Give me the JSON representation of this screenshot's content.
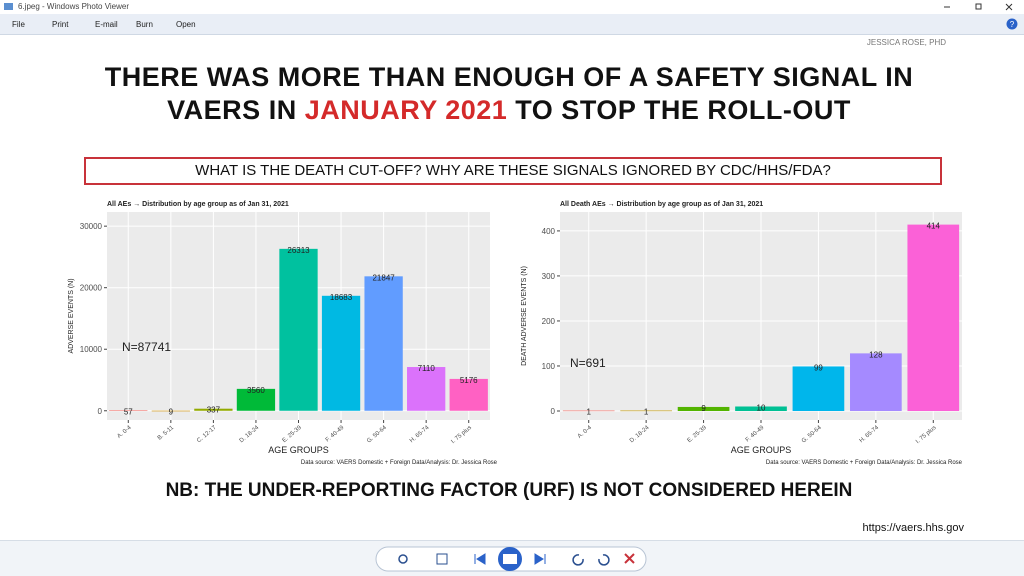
{
  "window": {
    "title": "6.jpeg - Windows Photo Viewer",
    "menu": [
      "File",
      "Print",
      "E-mail",
      "Burn",
      "Open"
    ]
  },
  "slide": {
    "author": "JESSICA ROSE, PHD",
    "headline_line1": "THERE WAS MORE THAN ENOUGH OF A SAFETY SIGNAL IN",
    "headline_line2_start": "VAERS IN ",
    "headline_line2_highlight": "JANUARY 2021",
    "headline_line2_end": " TO STOP THE ROLL-OUT",
    "question": "WHAT IS THE DEATH CUT-OFF? WHY ARE THESE SIGNALS IGNORED BY CDC/HHS/FDA?",
    "footnote": "NB: THE UNDER-REPORTING FACTOR (URF) IS NOT CONSIDERED HEREIN",
    "url": "https://vaers.hhs.gov"
  },
  "chart_data": [
    {
      "type": "bar",
      "title": "All AEs → Distribution by age group as of Jan 31, 2021",
      "y_label": "ADVERSE EVENTS (N)",
      "x_label": "AGE GROUPS",
      "annotation": "N=87741",
      "source": "Data source: VAERS Domestic + Foreign Data/Analysis: Dr. Jessica Rose",
      "categories": [
        "A. 0-4",
        "B. 5-11",
        "C. 12-17",
        "D. 18-24",
        "E. 25-39",
        "F. 40-49",
        "G. 50-64",
        "H. 65-74",
        "I. 75 plus"
      ],
      "values": [
        57,
        9,
        337,
        3560,
        26313,
        18683,
        21847,
        7110,
        5176
      ],
      "colors": [
        "#F8766D",
        "#D39200",
        "#93AA00",
        "#00BA38",
        "#00C19F",
        "#00B9E3",
        "#619CFF",
        "#DB72FB",
        "#FF61C3"
      ],
      "ylim": [
        -1500,
        32300
      ],
      "yticks": [
        0,
        10000,
        20000,
        30000
      ],
      "grid": true
    },
    {
      "type": "bar",
      "title": "All Death AEs → Distribution by age group as of Jan 31, 2021",
      "y_label": "DEATH ADVERSE EVENTS (N)",
      "x_label": "AGE GROUPS",
      "annotation": "N=691",
      "source": "Data source: VAERS Domestic + Foreign Data/Analysis: Dr. Jessica Rose",
      "categories": [
        "A. 0-4",
        "D. 18-24",
        "E. 25-39",
        "F. 40-49",
        "G. 50-64",
        "H. 65-74",
        "I. 75 plus"
      ],
      "values": [
        1,
        1,
        9,
        10,
        99,
        128,
        414
      ],
      "colors": [
        "#F8766D",
        "#C49A00",
        "#53B400",
        "#00C094",
        "#00B6EB",
        "#A58AFF",
        "#FB61D7"
      ],
      "ylim": [
        -20,
        442
      ],
      "yticks": [
        0,
        100,
        200,
        300,
        400
      ],
      "grid": true
    }
  ]
}
